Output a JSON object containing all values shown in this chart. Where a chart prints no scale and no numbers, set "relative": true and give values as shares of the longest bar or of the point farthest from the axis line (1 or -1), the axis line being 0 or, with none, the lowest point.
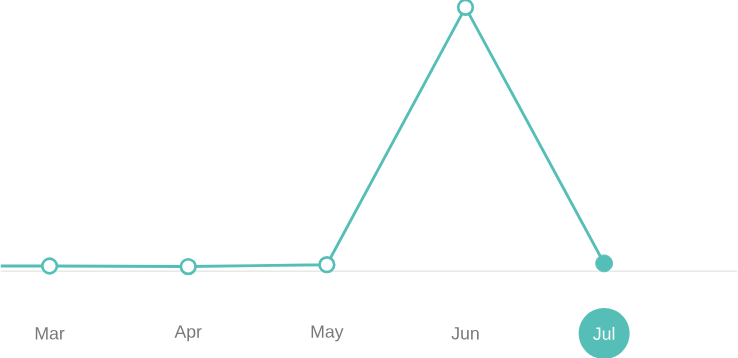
{
  "chart_data": {
    "type": "line",
    "relative": true,
    "categories": [
      null,
      "Mar",
      "Apr",
      "May",
      "Jun",
      "Jul"
    ],
    "series": [
      {
        "color": "#55bfb7",
        "values": [
          0.02,
          0.02,
          0.018,
          0.025,
          1,
          0.03
        ]
      }
    ],
    "marker": "circle",
    "line_style": "solid"
  }
}
